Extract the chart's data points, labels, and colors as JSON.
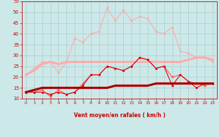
{
  "x": [
    0,
    1,
    2,
    3,
    4,
    5,
    6,
    7,
    8,
    9,
    10,
    11,
    12,
    13,
    14,
    15,
    16,
    17,
    18,
    19,
    20,
    21,
    22,
    23
  ],
  "series": [
    {
      "name": "rafales_light",
      "color": "#ffaaaa",
      "linewidth": 0.8,
      "markersize": 2.0,
      "values": [
        21,
        24,
        27,
        27,
        22,
        27,
        38,
        36,
        40,
        41,
        52,
        46,
        51,
        46,
        48,
        47,
        41,
        40,
        43,
        32,
        31,
        29,
        29,
        27
      ]
    },
    {
      "name": "moy_light",
      "color": "#ffaaaa",
      "linewidth": 2.2,
      "markersize": 0,
      "values": [
        21,
        23,
        26,
        27,
        26,
        27,
        27,
        27,
        27,
        27,
        27,
        27,
        27,
        27,
        27,
        27,
        27,
        27,
        27,
        27,
        28,
        29,
        29,
        28
      ]
    },
    {
      "name": "rafales_med",
      "color": "#ff5555",
      "linewidth": 0.8,
      "markersize": 2.0,
      "values": [
        13,
        13,
        14,
        11,
        14,
        12,
        13,
        17,
        21,
        21,
        25,
        24,
        23,
        25,
        29,
        28,
        24,
        25,
        20,
        21,
        18,
        17,
        16,
        17
      ]
    },
    {
      "name": "moy_med",
      "color": "#ff3333",
      "linewidth": 2.2,
      "markersize": 0,
      "values": [
        13,
        14,
        15,
        15,
        15,
        15,
        15,
        15,
        15,
        15,
        15,
        16,
        16,
        16,
        16,
        16,
        17,
        17,
        17,
        17,
        17,
        17,
        17,
        17
      ]
    },
    {
      "name": "rafales_dark",
      "color": "#dd0000",
      "linewidth": 0.8,
      "markersize": 2.0,
      "values": [
        13,
        13,
        13,
        12,
        13,
        12,
        13,
        16,
        21,
        21,
        25,
        24,
        23,
        25,
        29,
        28,
        24,
        25,
        16,
        21,
        18,
        15,
        17,
        17
      ]
    },
    {
      "name": "moy_dark",
      "color": "#990000",
      "linewidth": 2.0,
      "markersize": 0,
      "values": [
        13,
        14,
        15,
        15,
        15,
        15,
        15,
        15,
        15,
        15,
        15,
        16,
        16,
        16,
        16,
        16,
        17,
        17,
        17,
        17,
        17,
        17,
        17,
        17
      ]
    }
  ],
  "xlabel": "Vent moyen/en rafales ( km/h )",
  "ylim": [
    10,
    55
  ],
  "xlim": [
    -0.5,
    23.5
  ],
  "yticks": [
    10,
    15,
    20,
    25,
    30,
    35,
    40,
    45,
    50,
    55
  ],
  "xticks": [
    0,
    1,
    2,
    3,
    4,
    5,
    6,
    7,
    8,
    9,
    10,
    11,
    12,
    13,
    14,
    15,
    16,
    17,
    18,
    19,
    20,
    21,
    22,
    23
  ],
  "background_color": "#cce8e8",
  "grid_color": "#aacccc",
  "tick_color": "#cc0000",
  "label_color": "#cc0000",
  "arrow_color": "#cc0000"
}
